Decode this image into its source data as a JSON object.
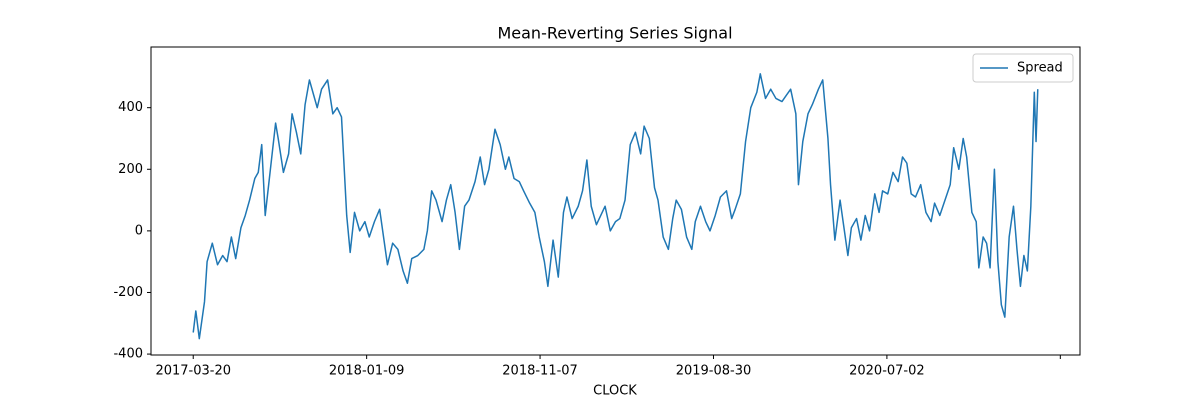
{
  "chart_data": {
    "type": "line",
    "title": "Mean-Reverting Series Signal",
    "x_label": "CLOCK",
    "x": [
      0,
      3,
      7,
      13,
      16,
      22,
      28,
      34,
      39,
      44,
      49,
      55,
      60,
      65,
      71,
      75,
      79,
      83,
      89,
      95,
      98,
      104,
      110,
      114,
      119,
      124,
      129,
      134,
      139,
      143,
      148,
      155,
      161,
      166,
      171,
      177,
      181,
      186,
      192,
      198,
      203,
      209,
      215,
      220,
      224,
      230,
      236,
      242,
      247,
      252,
      259,
      266,
      270,
      275,
      280,
      287,
      292,
      297,
      302,
      307,
      313,
      318,
      325,
      331,
      336,
      341,
      348,
      354,
      360,
      364,
      370,
      376,
      381,
      388,
      394,
      399,
      405,
      409,
      415,
      421,
      427,
      431,
      437,
      444,
      449,
      454,
      459,
      465,
      470,
      475,
      481,
      487,
      492,
      498,
      504,
      510,
      516,
      520,
      526,
      532,
      536,
      542,
      548,
      553,
      557,
      563,
      569,
      575,
      579,
      585,
      591,
      596,
      602,
      608,
      615,
      621,
      625,
      631,
      637,
      643,
      650,
      654,
      660,
      666,
      672,
      679,
      684,
      689,
      695,
      698,
      703,
      709,
      714,
      721,
      726,
      732,
      735,
      740,
      746,
      750,
      755,
      759,
      765,
      770,
      775,
      780,
      786,
      791,
      795,
      801,
      807,
      813,
      818,
      823,
      828,
      833,
      839,
      845,
      851,
      855,
      861,
      867,
      873,
      877,
      883,
      888,
      892,
      898,
      903,
      906,
      911,
      915,
      919,
      924,
      928,
      932,
      936,
      941,
      946,
      950,
      954,
      958,
      962,
      966,
      970,
      972,
      974
    ],
    "series": [
      {
        "name": "Spread",
        "color": "#1f77b4",
        "values": [
          -330,
          -260,
          -350,
          -230,
          -100,
          -40,
          -110,
          -80,
          -100,
          -20,
          -90,
          10,
          50,
          100,
          170,
          190,
          280,
          50,
          200,
          350,
          300,
          190,
          250,
          380,
          320,
          250,
          410,
          490,
          440,
          400,
          460,
          490,
          380,
          400,
          370,
          50,
          -70,
          60,
          0,
          30,
          -20,
          30,
          70,
          -30,
          -110,
          -40,
          -60,
          -130,
          -170,
          -90,
          -80,
          -60,
          0,
          130,
          100,
          30,
          100,
          150,
          60,
          -60,
          80,
          100,
          160,
          240,
          150,
          200,
          330,
          280,
          200,
          240,
          170,
          160,
          130,
          90,
          60,
          -20,
          -100,
          -180,
          -30,
          -150,
          60,
          110,
          40,
          80,
          130,
          230,
          80,
          20,
          50,
          80,
          0,
          30,
          40,
          100,
          280,
          320,
          250,
          340,
          300,
          140,
          100,
          -20,
          -60,
          40,
          100,
          70,
          -20,
          -60,
          30,
          80,
          30,
          0,
          50,
          110,
          130,
          40,
          70,
          120,
          290,
          400,
          450,
          510,
          430,
          460,
          430,
          420,
          440,
          460,
          380,
          150,
          290,
          380,
          410,
          460,
          490,
          300,
          150,
          -30,
          100,
          20,
          -80,
          10,
          40,
          -30,
          50,
          0,
          120,
          60,
          130,
          120,
          190,
          160,
          240,
          220,
          120,
          110,
          150,
          60,
          30,
          90,
          50,
          100,
          150,
          270,
          200,
          300,
          240,
          60,
          30,
          -120,
          -20,
          -40,
          -120,
          200,
          -100,
          -240,
          -280,
          -20,
          80,
          -60,
          -180,
          -80,
          -130,
          80,
          450,
          290,
          460
        ]
      }
    ],
    "xlim": [
      -48.7,
      1022.7
    ],
    "ylim": [
      -403,
      597
    ],
    "xticks": [
      {
        "value": 0,
        "label": "2017-03-20"
      },
      {
        "value": 200,
        "label": "2018-01-09"
      },
      {
        "value": 400,
        "label": "2018-11-07"
      },
      {
        "value": 600,
        "label": "2019-08-30"
      },
      {
        "value": 800,
        "label": "2020-07-02"
      },
      {
        "value": 1000
      }
    ],
    "yticks": [
      -400,
      -200,
      0,
      200,
      400
    ],
    "grid": false,
    "legend": "upper right"
  }
}
